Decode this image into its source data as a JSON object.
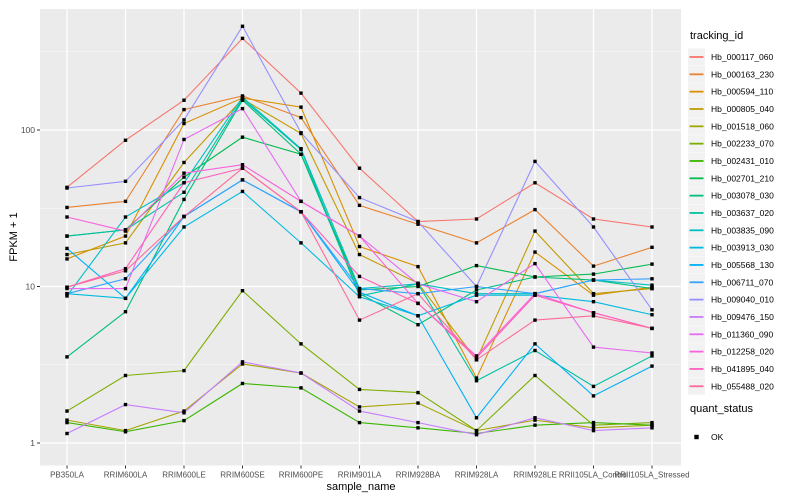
{
  "figure": {
    "bg": "#FFFFFF",
    "panel_bg": "#EBEBEB",
    "grid_major_color": "#FFFFFF",
    "grid_minor_color": "#FFFFFF",
    "axis_text_color": "#4D4D4D",
    "tick_color": "#333333",
    "point_color": "#000000",
    "legend_key_bg": "#F2F2F2"
  },
  "legend": {
    "tracking_title": "tracking_id",
    "quant_title": "quant_status",
    "quant_items": [
      {
        "label": "OK",
        "marker": "black-square"
      }
    ]
  },
  "chart_data": {
    "type": "line",
    "title": "",
    "xlabel": "sample_name",
    "ylabel": "FPKM + 1",
    "y_scale": "log10",
    "ylim": [
      0.75,
      590
    ],
    "grid": true,
    "legend_position": "right",
    "y_ticks": [
      1,
      10,
      100
    ],
    "y_tick_labels": [
      "1",
      "10",
      "100"
    ],
    "y_minor": [
      3.1623,
      31.623,
      316.23
    ],
    "categories": [
      "PB350LA",
      "RRIM600LA",
      "RRIM600LE",
      "RRIM600SE",
      "RRIM600PE",
      "RRIM901LA",
      "RRIM928BA",
      "RRIM928LA",
      "RRIM928LE",
      "RRII105LA_Control",
      "RRII105LA_Stressed"
    ],
    "series": [
      {
        "name": "Hb_000117_060",
        "color": "#F8766D",
        "values": [
          43,
          86,
          155,
          385,
          172,
          57,
          26,
          27,
          46,
          27,
          24
        ]
      },
      {
        "name": "Hb_000163_230",
        "color": "#EA8331",
        "values": [
          32,
          35,
          135,
          165,
          120,
          33,
          25,
          19,
          31,
          13.5,
          17.8
        ]
      },
      {
        "name": "Hb_000594_110",
        "color": "#D89000",
        "values": [
          15,
          21,
          110,
          160,
          140,
          18,
          13.4,
          2.6,
          16.6,
          8.8,
          9.9
        ]
      },
      {
        "name": "Hb_000805_040",
        "color": "#C09B00",
        "values": [
          16,
          19,
          62,
          158,
          95,
          16,
          10.5,
          3.4,
          22.6,
          9,
          9.7
        ]
      },
      {
        "name": "Hb_001518_060",
        "color": "#A3A500",
        "values": [
          1.4,
          1.2,
          1.6,
          3.2,
          2.8,
          1.7,
          1.8,
          1.2,
          1.4,
          1.25,
          1.3
        ]
      },
      {
        "name": "Hb_002233_070",
        "color": "#7CAE00",
        "values": [
          1.6,
          2.7,
          2.9,
          9.4,
          4.3,
          2.2,
          2.1,
          1.2,
          2.7,
          1.3,
          1.35
        ]
      },
      {
        "name": "Hb_002431_010",
        "color": "#39B600",
        "values": [
          1.35,
          1.18,
          1.39,
          2.4,
          2.25,
          1.35,
          1.25,
          1.15,
          1.3,
          1.35,
          1.3
        ]
      },
      {
        "name": "Hb_002701_210",
        "color": "#00BB4E",
        "values": [
          21,
          23,
          50,
          90,
          70,
          9.5,
          10,
          13.6,
          11.5,
          12,
          13.9
        ]
      },
      {
        "name": "Hb_003078_030",
        "color": "#00BF7D",
        "values": [
          3.55,
          6.9,
          36,
          155,
          70,
          9,
          5.7,
          9.5,
          11.5,
          11,
          9.7
        ]
      },
      {
        "name": "Hb_003637_020",
        "color": "#00C1A3",
        "values": [
          21,
          23,
          40,
          158,
          75,
          8.7,
          10.4,
          2.5,
          3.9,
          2.3,
          3.6
        ]
      },
      {
        "name": "Hb_003835_090",
        "color": "#00BFC4",
        "values": [
          8.7,
          27.8,
          46,
          162,
          76,
          9.7,
          10.4,
          9,
          9,
          11,
          10.2
        ]
      },
      {
        "name": "Hb_003913_030",
        "color": "#00BAE0",
        "values": [
          9,
          8.4,
          24,
          40.5,
          19,
          8.6,
          6.5,
          8.8,
          8.8,
          8,
          6.6
        ]
      },
      {
        "name": "Hb_005568_130",
        "color": "#00B0F6",
        "values": [
          17.5,
          8.4,
          28,
          48,
          30,
          9.2,
          6.5,
          1.45,
          4.3,
          2,
          3.1
        ]
      },
      {
        "name": "Hb_006711_070",
        "color": "#35A2FF",
        "values": [
          9,
          11.2,
          28,
          48,
          30,
          9.7,
          9,
          10,
          9,
          11,
          11.2
        ]
      },
      {
        "name": "Hb_009040_010",
        "color": "#9590FF",
        "values": [
          42.6,
          47,
          116,
          460,
          96,
          37,
          26,
          10,
          63,
          24,
          7.1
        ]
      },
      {
        "name": "Hb_009476_150",
        "color": "#C77CFF",
        "values": [
          1.15,
          1.76,
          1.56,
          3.3,
          2.8,
          1.6,
          1.35,
          1.13,
          1.45,
          1.2,
          1.25
        ]
      },
      {
        "name": "Hb_011360_090",
        "color": "#E76BF3",
        "values": [
          9.7,
          9.7,
          87,
          137,
          35,
          21,
          10.4,
          8,
          14,
          4.1,
          3.76
        ]
      },
      {
        "name": "Hb_012258_020",
        "color": "#FA62DB",
        "values": [
          27.8,
          22.6,
          53,
          60,
          35,
          21,
          7.8,
          3.6,
          9,
          6.8,
          5.4
        ]
      },
      {
        "name": "Hb_041895_040",
        "color": "#FF62BC",
        "values": [
          9.9,
          13,
          46,
          57,
          30,
          11.6,
          7.8,
          3.5,
          8.8,
          6.8,
          5.4
        ]
      },
      {
        "name": "Hb_055488_020",
        "color": "#FF6A98",
        "values": [
          9.9,
          12.6,
          28,
          57,
          30,
          6.1,
          9,
          3.4,
          6.1,
          6.5,
          5.4
        ]
      }
    ]
  }
}
